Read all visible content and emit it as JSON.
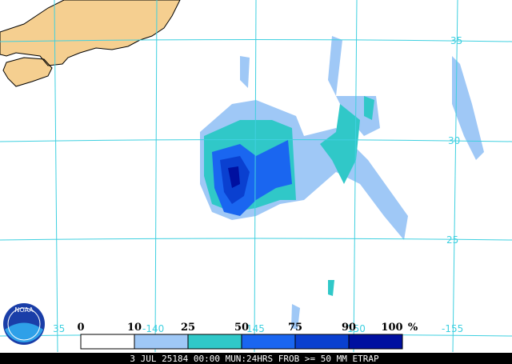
{
  "map": {
    "latitude_labels": [
      "35",
      "30",
      "25"
    ],
    "longitude_labels": [
      "35",
      "-140",
      "145",
      "150",
      "-155"
    ],
    "legend": {
      "labels": [
        "0",
        "10",
        "25",
        "50",
        "75",
        "90",
        "100"
      ],
      "unit": "%"
    },
    "logo": "NOAA",
    "footer": "3 JUL 25184 00:00 MUN:24HRS FROB >= 50 MM ETRAP"
  }
}
